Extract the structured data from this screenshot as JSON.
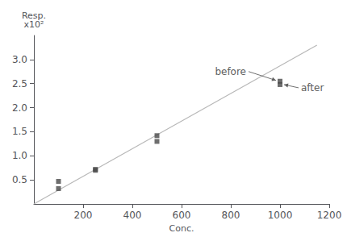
{
  "chart_data": {
    "type": "scatter",
    "xlabel": "Conc.",
    "ylabel": "Resp.\nx10²",
    "xlim": [
      0,
      1200
    ],
    "ylim": [
      0.0,
      3.5
    ],
    "xticks": [
      200,
      400,
      600,
      800,
      1000,
      1200
    ],
    "yticks": [
      0.5,
      {
        "value": 1.0,
        "label": "1.0"
      },
      1.5,
      {
        "value": 2.0,
        "label": "2.0"
      },
      2.5,
      {
        "value": 3.0,
        "label": "3.0"
      }
    ],
    "grid": false,
    "series": [
      {
        "type": "line",
        "color": "#b8b8b8",
        "x": [
          0,
          1150
        ],
        "values": [
          0.0,
          3.3
        ]
      },
      {
        "type": "scatter",
        "marker": "square",
        "color": "#4a4a4a",
        "x": [
          100,
          250,
          500,
          1000
        ],
        "values": [
          0.47,
          0.72,
          1.42,
          2.55
        ]
      },
      {
        "type": "scatter",
        "marker": "square",
        "color": "#4a4a4a",
        "x": [
          100,
          250,
          500,
          1000
        ],
        "values": [
          0.32,
          0.7,
          1.3,
          2.48
        ]
      }
    ],
    "annotations": [
      {
        "text": "before",
        "x": 1000,
        "y": 2.55,
        "color": "#606060"
      },
      {
        "text": "after",
        "x": 1000,
        "y": 2.48,
        "color": "#606060"
      }
    ]
  }
}
